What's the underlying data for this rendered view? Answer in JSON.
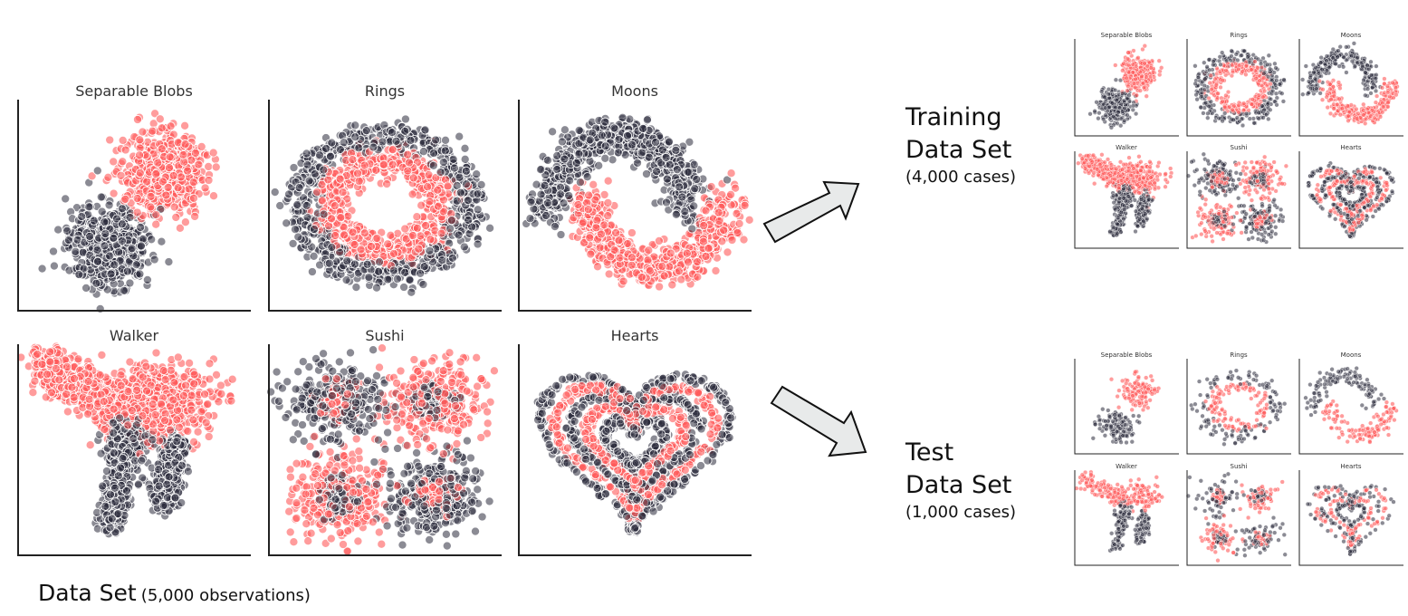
{
  "colors": {
    "dark": "#2b2b3d",
    "red": "#ff5a5a",
    "stroke": "#ffffff",
    "axis": "#222222",
    "arrow_fill": "#e8eaea",
    "arrow_stroke": "#111111"
  },
  "dataset_titles": [
    "Separable Blobs",
    "Rings",
    "Moons",
    "Walker",
    "Sushi",
    "Hearts"
  ],
  "main_grid": {
    "caption_main": "Data Set",
    "caption_sub": "(5,000 observations)"
  },
  "training": {
    "line1": "Training",
    "line2": "Data Set",
    "line3": "(4,000 cases)"
  },
  "test": {
    "line1": "Test",
    "line2": "Data Set",
    "line3": "(1,000 cases)"
  },
  "arrows": [
    "arrow-to-training",
    "arrow-to-test"
  ]
}
